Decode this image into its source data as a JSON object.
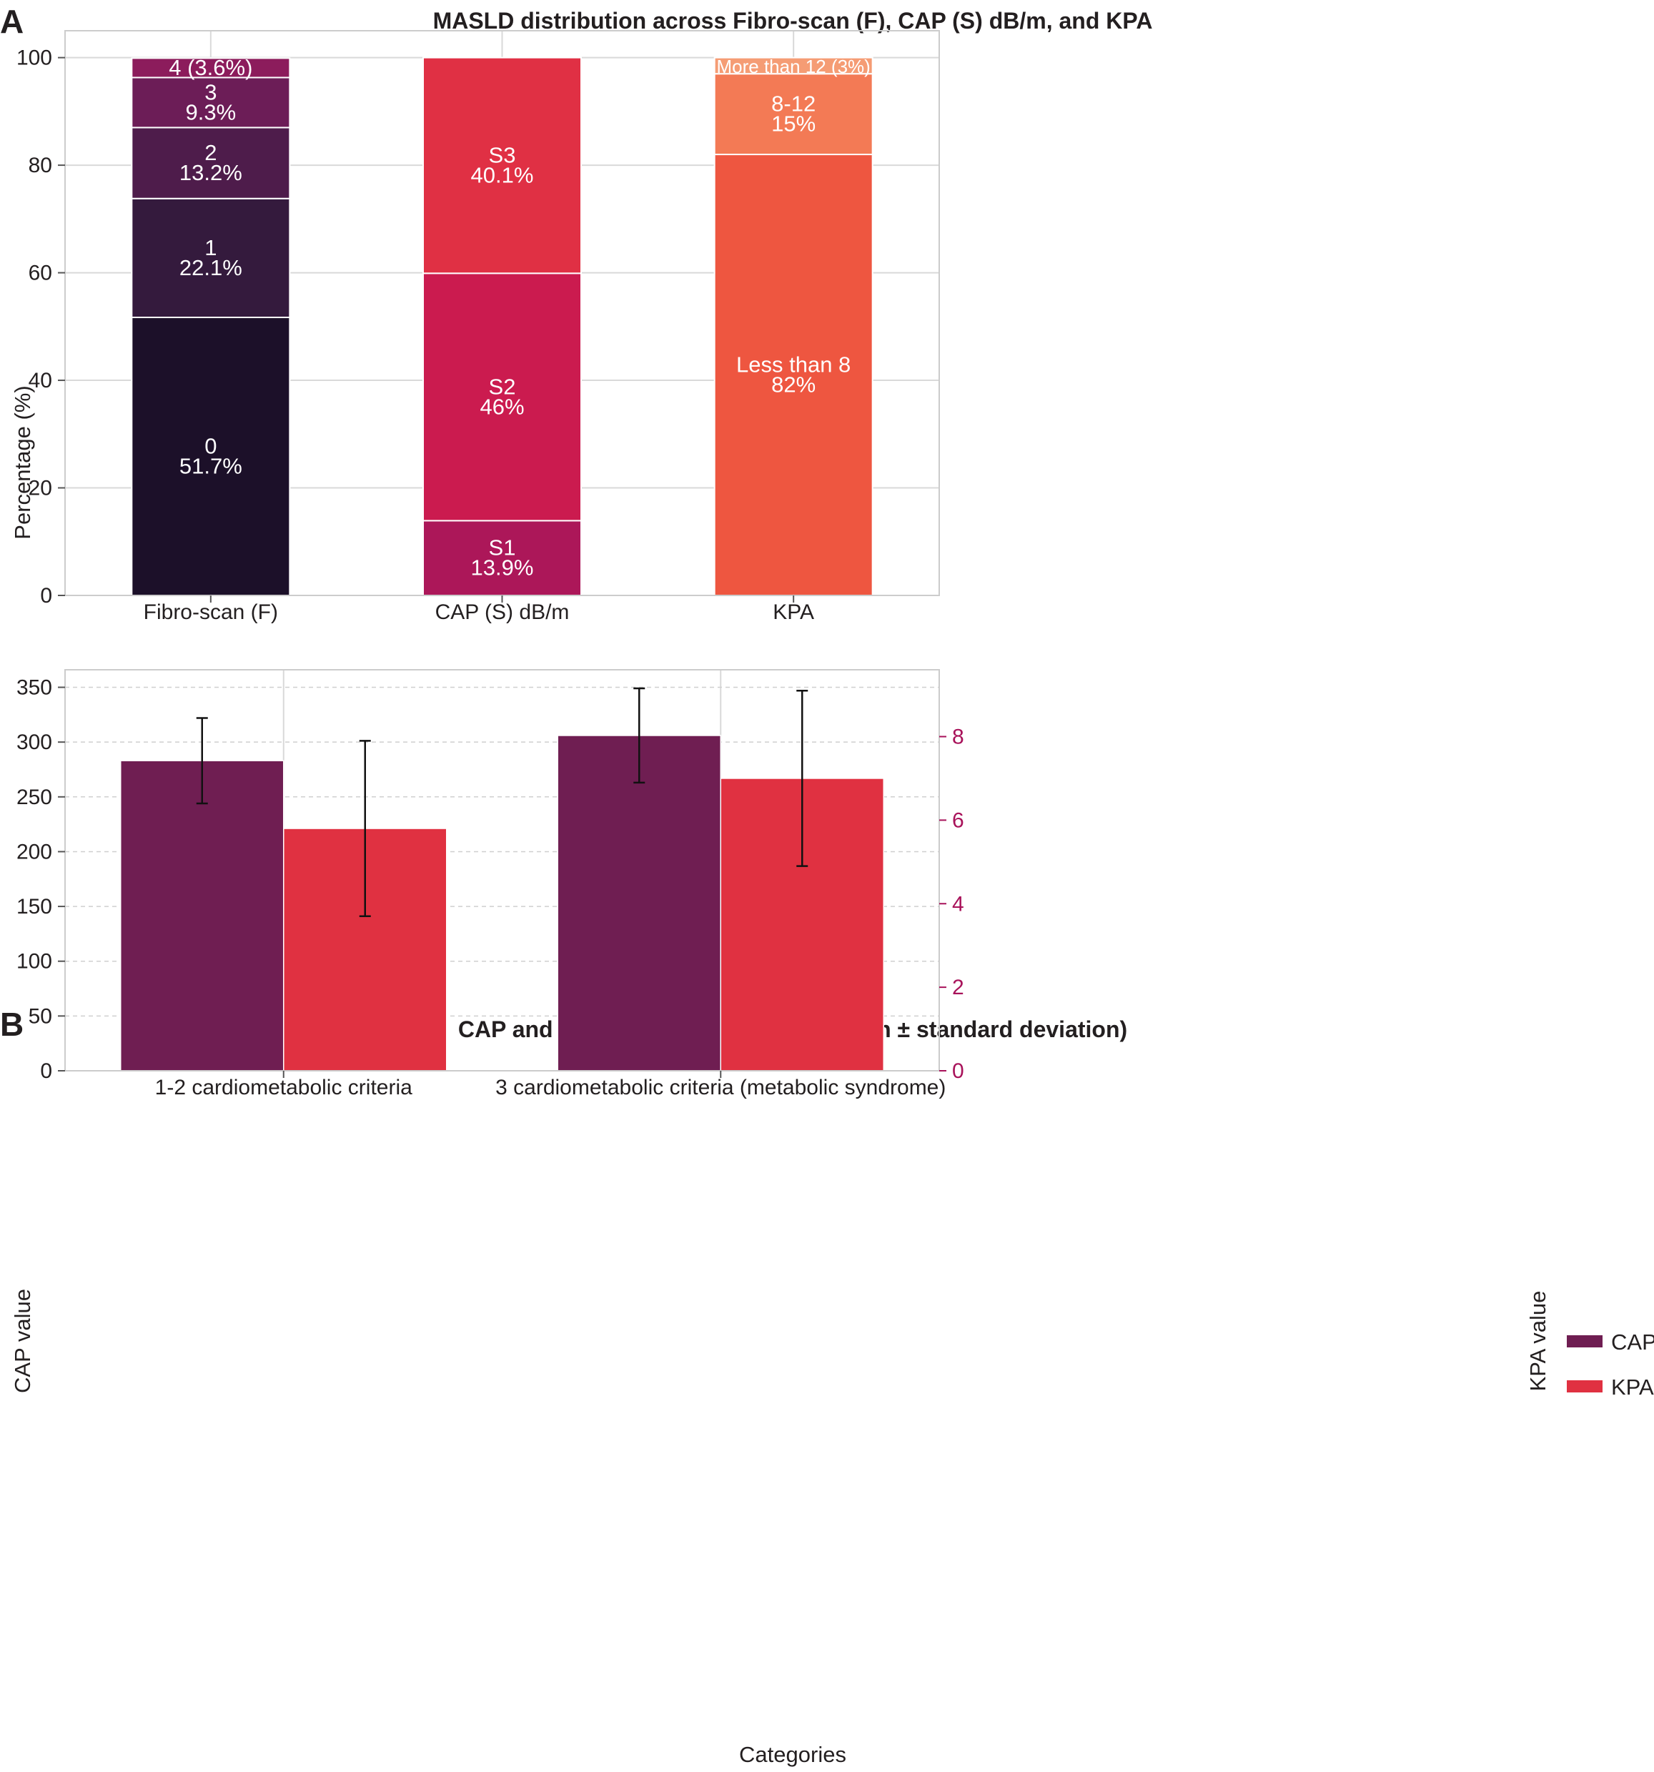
{
  "chart_data": [
    {
      "panel": "A",
      "type": "bar",
      "stacked": true,
      "title": "MASLD distribution across Fibro-scan (F), CAP (S) dB/m, and KPA",
      "xlabel": "",
      "ylabel": "Percentage (%)",
      "ylim": [
        0,
        105
      ],
      "yticks": [
        0,
        20,
        40,
        60,
        80,
        100
      ],
      "grid": true,
      "categories": [
        "Fibro-scan (F)",
        "CAP (S) dB/m",
        "KPA"
      ],
      "stacks": [
        {
          "category": "Fibro-scan (F)",
          "segments": [
            {
              "name": "0",
              "value": 51.7,
              "label_lines": [
                "0",
                "51.7%"
              ],
              "color": "#1c1029"
            },
            {
              "name": "1",
              "value": 22.1,
              "label_lines": [
                "1",
                "22.1%"
              ],
              "color": "#341a3d"
            },
            {
              "name": "2",
              "value": 13.2,
              "label_lines": [
                "2",
                "13.2%"
              ],
              "color": "#4e1c4b"
            },
            {
              "name": "3",
              "value": 9.3,
              "label_lines": [
                "3",
                "9.3%"
              ],
              "color": "#6c1d57"
            },
            {
              "name": "4",
              "value": 3.6,
              "label_lines": [
                "4 (3.6%)"
              ],
              "color": "#8c1c5c"
            }
          ]
        },
        {
          "category": "CAP (S) dB/m",
          "segments": [
            {
              "name": "S1",
              "value": 13.9,
              "label_lines": [
                "S1",
                "13.9%"
              ],
              "color": "#ac1759"
            },
            {
              "name": "S2",
              "value": 46,
              "label_lines": [
                "S2",
                "46%"
              ],
              "color": "#cb1b4f"
            },
            {
              "name": "S3",
              "value": 40.1,
              "label_lines": [
                "S3",
                "40.1%"
              ],
              "color": "#e03044"
            }
          ]
        },
        {
          "category": "KPA",
          "segments": [
            {
              "name": "Less than 8",
              "value": 82,
              "label_lines": [
                "Less than 8",
                "82%"
              ],
              "color": "#ee5640"
            },
            {
              "name": "8-12",
              "value": 15,
              "label_lines": [
                "8-12",
                "15%"
              ],
              "color": "#f37a55"
            },
            {
              "name": "More than 12",
              "value": 3,
              "label_lines": [
                "More than 12 (3%)"
              ],
              "color": "#f59c74"
            }
          ]
        }
      ]
    },
    {
      "panel": "B",
      "type": "bar",
      "title": "CAP and KPA values by category (mean ± standard deviation)",
      "xlabel": "Categories",
      "ylabel": "CAP value",
      "ylabel_right": "KPA value",
      "ylim": [
        0,
        366
      ],
      "yticks": [
        0,
        50,
        100,
        150,
        200,
        250,
        300,
        350
      ],
      "ylim_right": [
        0,
        9.6
      ],
      "yticks_right": [
        0,
        2,
        4,
        6,
        8
      ],
      "right_axis_color": "#a8125a",
      "grid": true,
      "legend_position": "right",
      "categories": [
        "1-2 cardiometabolic criteria",
        "3 cardiometabolic criteria (metabolic syndrome)"
      ],
      "series": [
        {
          "name": "CAP",
          "axis": "left",
          "color": "#6f1e52",
          "values": [
            283,
            306
          ],
          "error": [
            39,
            43
          ]
        },
        {
          "name": "KPA",
          "axis": "right",
          "color": "#e03141",
          "values": [
            5.8,
            7.0
          ],
          "error": [
            2.1,
            2.1
          ]
        }
      ]
    }
  ]
}
